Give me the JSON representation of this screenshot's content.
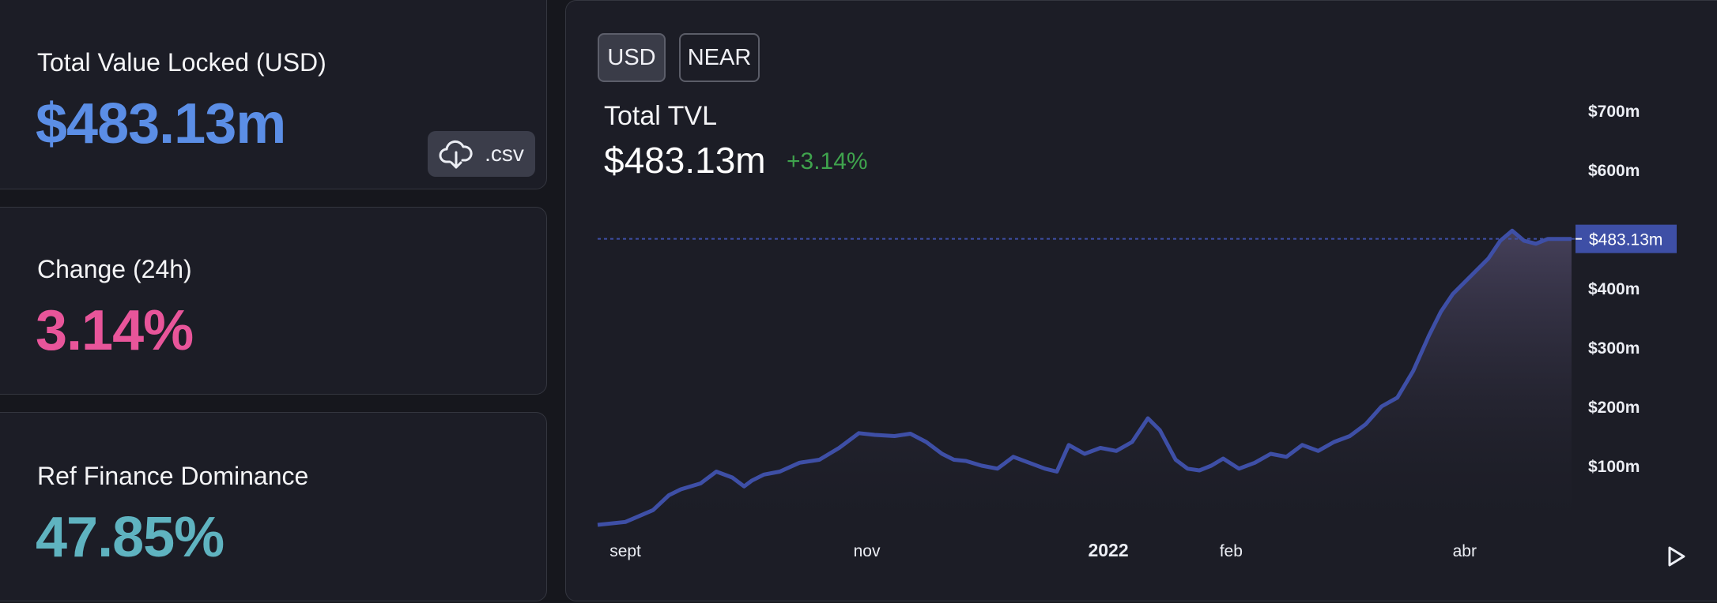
{
  "stats": {
    "tvl": {
      "label": "Total Value Locked (USD)",
      "value": "$483.13m"
    },
    "change": {
      "label": "Change (24h)",
      "value": "3.14%"
    },
    "dominance": {
      "label": "Ref Finance Dominance",
      "value": "47.85%"
    }
  },
  "csv_button": {
    "label": ".csv",
    "icon": "cloud-download-icon"
  },
  "chart_panel": {
    "toggles": [
      {
        "label": "USD",
        "active": true
      },
      {
        "label": "NEAR",
        "active": false
      }
    ],
    "title": "Total TVL",
    "value": "$483.13m",
    "change": "+3.14%",
    "price_tag": "$483.13m",
    "play_icon": "play-icon"
  },
  "colors": {
    "line": "#3e4fa6",
    "tvl_value": "#5b8ee6",
    "change_value": "#e8559a",
    "dominance_value": "#5fb3c0",
    "positive_change": "#3fa34d",
    "price_tag_bg": "#3e4fa6"
  },
  "chart_data": {
    "type": "area",
    "title": "Total TVL",
    "y_unit": "USD (millions)",
    "ylim": [
      0,
      700
    ],
    "y_ticks": [
      {
        "value": 100,
        "label": "$100m"
      },
      {
        "value": 200,
        "label": "$200m"
      },
      {
        "value": 300,
        "label": "$300m"
      },
      {
        "value": 400,
        "label": "$400m"
      },
      {
        "value": 600,
        "label": "$600m"
      },
      {
        "value": 700,
        "label": "$700m"
      }
    ],
    "x_ticks": [
      {
        "date": "2021-09-01",
        "label": "sept",
        "bold": false
      },
      {
        "date": "2021-11-01",
        "label": "nov",
        "bold": false
      },
      {
        "date": "2022-01-01",
        "label": "2022",
        "bold": true
      },
      {
        "date": "2022-02-01",
        "label": "feb",
        "bold": false
      },
      {
        "date": "2022-04-01",
        "label": "abr",
        "bold": false
      }
    ],
    "xlim": [
      "2021-08-25",
      "2022-04-28"
    ],
    "current_value": 483.13,
    "grid": false,
    "legend": "none",
    "series": [
      {
        "x": [
          "2021-08-25",
          "2021-09-01",
          "2021-09-08",
          "2021-09-12",
          "2021-09-15",
          "2021-09-20",
          "2021-09-24",
          "2021-09-28",
          "2021-10-01",
          "2021-10-03",
          "2021-10-06",
          "2021-10-10",
          "2021-10-15",
          "2021-10-20",
          "2021-10-25",
          "2021-10-30",
          "2021-11-03",
          "2021-11-08",
          "2021-11-12",
          "2021-11-16",
          "2021-11-20",
          "2021-11-23",
          "2021-11-26",
          "2021-11-30",
          "2021-12-04",
          "2021-12-08",
          "2021-12-12",
          "2021-12-16",
          "2021-12-19",
          "2021-12-22",
          "2021-12-26",
          "2021-12-30",
          "2022-01-03",
          "2022-01-07",
          "2022-01-11",
          "2022-01-14",
          "2022-01-18",
          "2022-01-21",
          "2022-01-24",
          "2022-01-27",
          "2022-01-30",
          "2022-02-03",
          "2022-02-07",
          "2022-02-11",
          "2022-02-15",
          "2022-02-19",
          "2022-02-23",
          "2022-02-27",
          "2022-03-03",
          "2022-03-07",
          "2022-03-11",
          "2022-03-15",
          "2022-03-19",
          "2022-03-23",
          "2022-03-26",
          "2022-03-29",
          "2022-04-01",
          "2022-04-04",
          "2022-04-07",
          "2022-04-10",
          "2022-04-13",
          "2022-04-16",
          "2022-04-19",
          "2022-04-22",
          "2022-04-25",
          "2022-04-28"
        ],
        "y": [
          0,
          5,
          25,
          50,
          60,
          70,
          90,
          80,
          65,
          75,
          85,
          90,
          105,
          110,
          130,
          155,
          152,
          150,
          154,
          140,
          120,
          110,
          108,
          100,
          95,
          115,
          105,
          95,
          90,
          135,
          120,
          130,
          125,
          140,
          180,
          160,
          110,
          95,
          92,
          100,
          112,
          95,
          105,
          120,
          115,
          135,
          125,
          140,
          150,
          170,
          200,
          215,
          260,
          320,
          360,
          390,
          410,
          430,
          450,
          480,
          497,
          480,
          475,
          483.13,
          483.13,
          483.13
        ]
      }
    ]
  }
}
